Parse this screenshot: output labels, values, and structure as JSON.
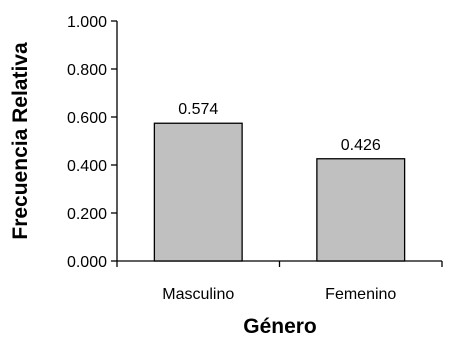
{
  "chart_data": {
    "type": "bar",
    "categories": [
      "Masculino",
      "Femenino"
    ],
    "values": [
      0.574,
      0.426
    ],
    "value_labels": [
      "0.574",
      "0.426"
    ],
    "xlabel": "Género",
    "ylabel": "Frecuencia Relativa",
    "ylim": [
      0,
      1
    ],
    "y_ticks": [
      0,
      0.2,
      0.4,
      0.6,
      0.8,
      1.0
    ],
    "y_tick_labels": [
      "0.000",
      "0.200",
      "0.400",
      "0.600",
      "0.800",
      "1.000"
    ],
    "grid": false,
    "legend": "none",
    "bar_color": "#c0c0c0",
    "bar_edge_color": "#000000"
  }
}
